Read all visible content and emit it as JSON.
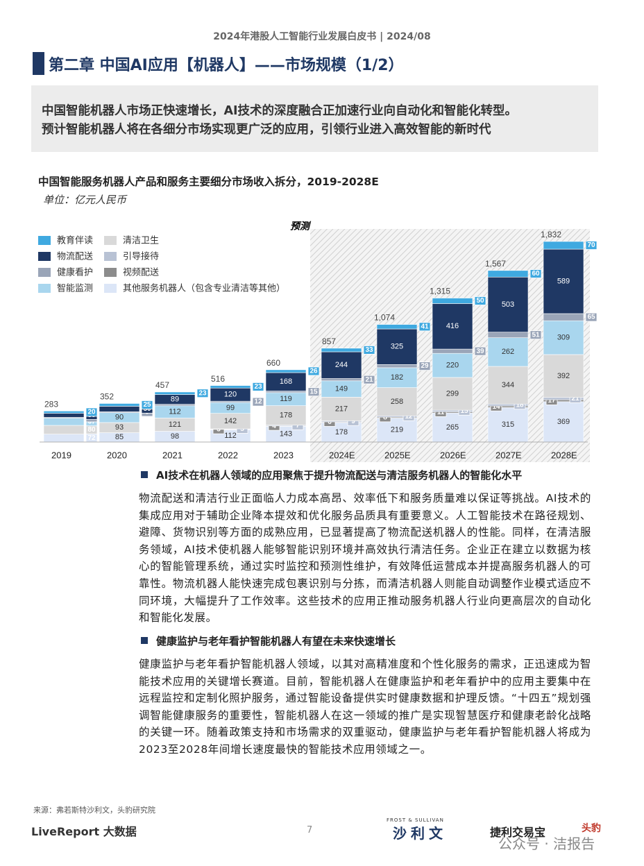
{
  "header": "2024年港股人工智能行业发展白皮书 | 2024/08",
  "title": "第二章 中国AI应用【机器人】——市场规模（1/2）",
  "summary": [
    "中国智能机器人市场正快速增长，AI技术的深度融合正加速行业向自动化和智能化转型。",
    "预计智能机器人将在各细分市场实现更广泛的应用，引领行业进入高效智能的新时代"
  ],
  "chart_title": "中国智能服务机器人产品和服务主要细分市场收入拆分，2019-2028E",
  "unit": "单位：亿元人民币",
  "chart_data": {
    "type": "stacked-bar",
    "forecast_label": "预测",
    "categories": [
      "2019",
      "2020",
      "2021",
      "2022",
      "2023",
      "2024E",
      "2025E",
      "2026E",
      "2027E",
      "2028E"
    ],
    "series": [
      {
        "name": "其他服务机器人（包含专业清洁等其他）",
        "color": "#dce6f7",
        "values": [
          72,
          85,
          98,
          112,
          143,
          178,
          219,
          265,
          315,
          369
        ]
      },
      {
        "name": "视频配送",
        "color": "#8c8c8c",
        "values": [
          null,
          null,
          null,
          3,
          4,
          6,
          8,
          11,
          14,
          17
        ]
      },
      {
        "name": "引导接待",
        "color": "#b8c2d4",
        "values": [
          null,
          null,
          null,
          5,
          7,
          9,
          12,
          15,
          18,
          21
        ]
      },
      {
        "name": "清洁卫生",
        "color": "#d9d9d9",
        "values": [
          80,
          93,
          121,
          142,
          178,
          217,
          258,
          299,
          344,
          392
        ]
      },
      {
        "name": "智能监测",
        "color": "#a9d6ee",
        "values": [
          67,
          90,
          112,
          99,
          119,
          149,
          182,
          220,
          262,
          309
        ]
      },
      {
        "name": "健康看护",
        "color": "#9aa5b8",
        "values": [
          6,
          9,
          14,
          12,
          15,
          21,
          29,
          39,
          51,
          65
        ],
        "value_labels": [
          "6",
          "9",
          null,
          "12",
          "15",
          "21",
          "29",
          "39",
          "51",
          "65"
        ]
      },
      {
        "name": "物流配送",
        "color": "#1f3864",
        "values": [
          38,
          50,
          89,
          120,
          168,
          244,
          325,
          416,
          503,
          589
        ]
      },
      {
        "name": "教育伴读",
        "color": "#3fa9e0",
        "values": [
          20,
          25,
          23,
          23,
          26,
          33,
          41,
          50,
          60,
          70
        ]
      }
    ],
    "totals": {
      "values": [
        283,
        352,
        457,
        516,
        660,
        857,
        1074,
        1315,
        1567,
        1832
      ],
      "value_labels": [
        "283",
        "352",
        "457",
        "516",
        "660",
        "857",
        "1,074",
        "1,315",
        "1,567",
        "1,832"
      ]
    }
  },
  "sections": [
    {
      "heading": "AI技术在机器人领域的应用聚焦于提升物流配送与清洁服务机器人的智能化水平",
      "paragraph": "物流配送和清洁行业正面临人力成本高昂、效率低下和服务质量难以保证等挑战。AI技术的集成应用对于辅助企业降本提效和优化服务品质具有重要意义。人工智能技术在路径规划、避障、货物识别等方面的成熟应用，已显著提高了物流配送机器人的性能。同样，在清洁服务领域，AI技术使机器人能够智能识别环境并高效执行清洁任务。企业正在建立以数据为核心的智能管理系统，通过实时监控和预测性维护，有效降低运营成本并提高服务机器人的可靠性。物流机器人能快速完成包裹识别与分拣，而清洁机器人则能自动调整作业模式适应不同环境，大幅提升了工作效率。这些技术的应用正推动服务机器人行业向更高层次的自动化和智能化发展。"
    },
    {
      "heading": "健康监护与老年看护智能机器人有望在未来快速增长",
      "paragraph": "健康监护与老年看护智能机器人领域，以其对高精准度和个性化服务的需求，正迅速成为智能技术应用的关键增长赛道。目前，智能机器人在健康监护和老年看护中的应用主要集中在远程监控和定制化照护服务，通过智能设备提供实时健康数据和护理反馈。“十四五”规划强调智能健康服务的重要性，智能机器人在这一领域的推广是实现智慧医疗和健康老龄化战略的关键一环。随着政策支持和市场需求的双重驱动，健康监护与老年看护智能机器人将成为2023至2028年间增长速度最快的智能技术应用领域之一。"
    }
  ],
  "source": "来源：弗若斯特沙利文，头豹研究院",
  "page_number": "7",
  "footer": {
    "liveReport": "LiveReport 大数据",
    "frost": "FROST & SULLIVAN",
    "sullivan": "沙利文",
    "jieli": "捷利交易宝",
    "toubao": "头豹",
    "watermark": "公众号 · 洁报告"
  }
}
